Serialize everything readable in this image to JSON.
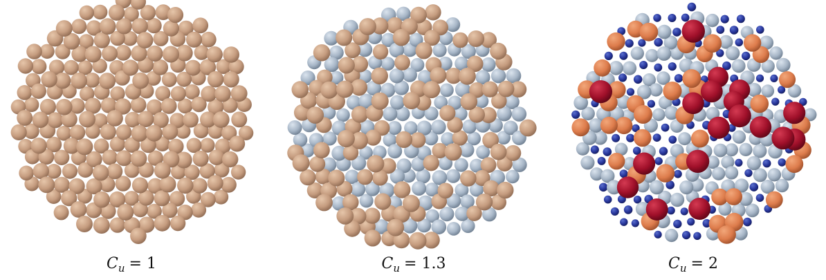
{
  "panels": [
    {
      "caption": {
        "variable": "C",
        "subscript": "u",
        "rest": "= 1"
      }
    },
    {
      "caption": {
        "variable": "C",
        "subscript": "u",
        "rest": "= 1.3"
      }
    },
    {
      "caption": {
        "variable": "C",
        "subscript": "u",
        "rest": "= 2"
      }
    }
  ]
}
